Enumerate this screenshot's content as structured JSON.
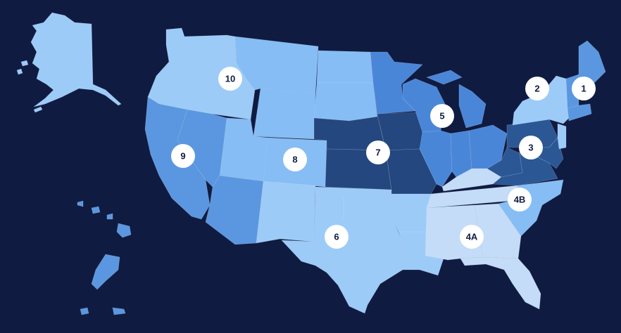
{
  "colors": {
    "background": "#101b41",
    "shade_lightest": "#c4dcf7",
    "shade_light": "#9dcbf8",
    "shade_medium_light": "#86bdf5",
    "shade_medium": "#5a97e0",
    "shade_medium_dark": "#4a86d8",
    "shade_dark": "#2b5795",
    "shade_darkest": "#23477e",
    "marker_fill": "#ffffff",
    "marker_text": "#101b41"
  },
  "regions": [
    {
      "label": "1",
      "shade": "shade_medium"
    },
    {
      "label": "2",
      "shade": "shade_light"
    },
    {
      "label": "3",
      "shade": "shade_dark"
    },
    {
      "label": "4A",
      "shade": "shade_lightest"
    },
    {
      "label": "4B",
      "shade": "shade_medium_light"
    },
    {
      "label": "5",
      "shade": "shade_medium_dark"
    },
    {
      "label": "6",
      "shade": "shade_light"
    },
    {
      "label": "7",
      "shade": "shade_darkest"
    },
    {
      "label": "8",
      "shade": "shade_medium_light"
    },
    {
      "label": "9",
      "shade": "shade_medium"
    },
    {
      "label": "10",
      "shade": "shade_light"
    }
  ]
}
